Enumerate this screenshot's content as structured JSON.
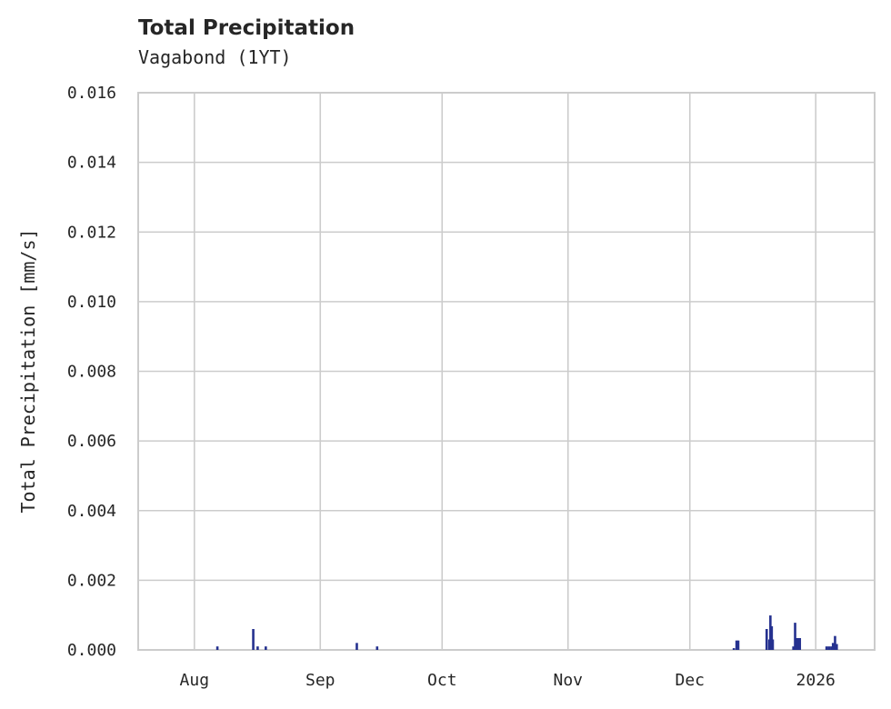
{
  "chart_data": {
    "type": "bar",
    "title": "Total Precipitation",
    "subtitle": "Vagabond (1YT)",
    "xlabel": "",
    "ylabel": "Total Precipitation [mm/s]",
    "xlim": [
      "2025-07-18T04:00:00Z",
      "2026-01-15T12:00:00Z"
    ],
    "ylim": [
      0,
      0.016
    ],
    "grid": true,
    "bar_color": "#25318f",
    "yticks": [
      0,
      0.002,
      0.004,
      0.006,
      0.008,
      0.01,
      0.012,
      0.014,
      0.016
    ],
    "ytick_labels": [
      "0.000",
      "0.002",
      "0.004",
      "0.006",
      "0.008",
      "0.010",
      "0.012",
      "0.014",
      "0.016"
    ],
    "xticks": [
      "2025-08-01T00:00:00Z",
      "2025-09-01T00:00:00Z",
      "2025-10-01T00:00:00Z",
      "2025-11-01T00:00:00Z",
      "2025-12-01T00:00:00Z",
      "2026-01-01T00:00:00Z"
    ],
    "xtick_labels": [
      "Aug",
      "Sep",
      "Oct",
      "Nov",
      "Dec",
      "2026"
    ],
    "points": [
      {
        "t": "2025-08-06T16:00:00Z",
        "v": 0.0001
      },
      {
        "t": "2025-08-15T12:00:00Z",
        "v": 0.0006
      },
      {
        "t": "2025-08-16T14:00:00Z",
        "v": 0.0001
      },
      {
        "t": "2025-08-18T14:00:00Z",
        "v": 0.0001
      },
      {
        "t": "2025-09-10T00:00:00Z",
        "v": 0.0002
      },
      {
        "t": "2025-09-15T00:00:00Z",
        "v": 0.0001
      },
      {
        "t": "2025-12-11T20:00:00Z",
        "v": 5e-05
      },
      {
        "t": "2025-12-12T12:00:00Z",
        "v": 0.00027
      },
      {
        "t": "2025-12-12T22:00:00Z",
        "v": 0.00027
      },
      {
        "t": "2025-12-19T22:00:00Z",
        "v": 0.0006
      },
      {
        "t": "2025-12-20T14:00:00Z",
        "v": 0.0003
      },
      {
        "t": "2025-12-20T20:00:00Z",
        "v": 0.00099
      },
      {
        "t": "2025-12-21T04:00:00Z",
        "v": 0.00068
      },
      {
        "t": "2025-12-21T10:00:00Z",
        "v": 0.0003
      },
      {
        "t": "2025-12-26T12:00:00Z",
        "v": 0.0001
      },
      {
        "t": "2025-12-26T22:00:00Z",
        "v": 0.00078
      },
      {
        "t": "2025-12-27T08:00:00Z",
        "v": 0.00034
      },
      {
        "t": "2025-12-27T18:00:00Z",
        "v": 0.00034
      },
      {
        "t": "2025-12-28T02:00:00Z",
        "v": 0.00034
      },
      {
        "t": "2026-01-03T16:00:00Z",
        "v": 0.0001
      },
      {
        "t": "2026-01-04T06:00:00Z",
        "v": 0.0001
      },
      {
        "t": "2026-01-04T20:00:00Z",
        "v": 0.0001
      },
      {
        "t": "2026-01-05T06:00:00Z",
        "v": 0.0002
      },
      {
        "t": "2026-01-05T18:00:00Z",
        "v": 0.0004
      },
      {
        "t": "2026-01-06T04:00:00Z",
        "v": 0.00017
      }
    ]
  }
}
